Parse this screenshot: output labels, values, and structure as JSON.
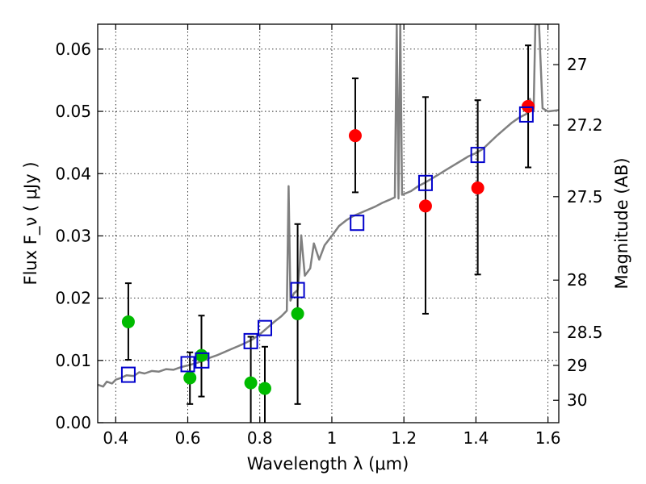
{
  "chart_data": {
    "type": "scatter",
    "title": "",
    "xlabel": "Wavelength  λ (μm)",
    "ylabel": "Flux  F_ν  ( μJy )",
    "y2label": "Magnitude (AB)",
    "xlim": [
      0.35,
      1.63
    ],
    "ylim": [
      0.0,
      0.064
    ],
    "grid": true,
    "x_ticks": [
      0.4,
      0.6,
      0.8,
      1.0,
      1.2,
      1.4,
      1.6
    ],
    "x_tick_labels": [
      "0.4",
      "0.6",
      "0.8",
      "1",
      "1.2",
      "1.4",
      "1.6"
    ],
    "y_ticks": [
      0.0,
      0.01,
      0.02,
      0.03,
      0.04,
      0.05,
      0.06
    ],
    "y_tick_labels": [
      "0.00",
      "0.01",
      "0.02",
      "0.03",
      "0.04",
      "0.05",
      "0.06"
    ],
    "y2_ticks": [
      {
        "label": "27",
        "flux": 0.0575
      },
      {
        "label": "27.2",
        "flux": 0.0478
      },
      {
        "label": "27.5",
        "flux": 0.0363
      },
      {
        "label": "28",
        "flux": 0.0229
      },
      {
        "label": "28.5",
        "flux": 0.0145
      },
      {
        "label": "29",
        "flux": 0.0092
      },
      {
        "label": "30",
        "flux": 0.0036
      }
    ],
    "series": [
      {
        "marker": "circle",
        "color": "#00bb00",
        "points": [
          {
            "x": 0.435,
            "y": 0.0162,
            "ylo": 0.0101,
            "yhi": 0.0224
          },
          {
            "x": 0.606,
            "y": 0.0072,
            "ylo": 0.003,
            "yhi": 0.0113
          },
          {
            "x": 0.638,
            "y": 0.0108,
            "ylo": 0.0042,
            "yhi": 0.0172
          },
          {
            "x": 0.775,
            "y": 0.0064,
            "ylo": 0.0,
            "yhi": 0.0138
          },
          {
            "x": 0.814,
            "y": 0.0055,
            "ylo": 0.0,
            "yhi": 0.0122
          },
          {
            "x": 0.905,
            "y": 0.0175,
            "ylo": 0.003,
            "yhi": 0.0319
          }
        ]
      },
      {
        "marker": "circle",
        "color": "#ff0000",
        "points": [
          {
            "x": 1.065,
            "y": 0.0461,
            "ylo": 0.037,
            "yhi": 0.0553
          },
          {
            "x": 1.26,
            "y": 0.0348,
            "ylo": 0.0175,
            "yhi": 0.0523
          },
          {
            "x": 1.405,
            "y": 0.0377,
            "ylo": 0.0238,
            "yhi": 0.0518
          },
          {
            "x": 1.545,
            "y": 0.0508,
            "ylo": 0.041,
            "yhi": 0.0606
          }
        ]
      },
      {
        "marker": "open-square",
        "color": "#0000cc",
        "points": [
          {
            "x": 0.435,
            "y": 0.0077
          },
          {
            "x": 0.6,
            "y": 0.0094
          },
          {
            "x": 0.64,
            "y": 0.01
          },
          {
            "x": 0.775,
            "y": 0.0131
          },
          {
            "x": 0.814,
            "y": 0.0152
          },
          {
            "x": 0.905,
            "y": 0.0213
          },
          {
            "x": 1.07,
            "y": 0.0321
          },
          {
            "x": 1.26,
            "y": 0.0385
          },
          {
            "x": 1.405,
            "y": 0.043
          },
          {
            "x": 1.54,
            "y": 0.0495
          }
        ]
      },
      {
        "marker": "line",
        "color": "#808080",
        "points": [
          {
            "x": 0.35,
            "y": 0.0061
          },
          {
            "x": 0.365,
            "y": 0.0058
          },
          {
            "x": 0.375,
            "y": 0.0066
          },
          {
            "x": 0.39,
            "y": 0.0063
          },
          {
            "x": 0.4,
            "y": 0.0069
          },
          {
            "x": 0.415,
            "y": 0.0072
          },
          {
            "x": 0.43,
            "y": 0.0076
          },
          {
            "x": 0.45,
            "y": 0.0075
          },
          {
            "x": 0.465,
            "y": 0.0081
          },
          {
            "x": 0.48,
            "y": 0.0079
          },
          {
            "x": 0.5,
            "y": 0.0083
          },
          {
            "x": 0.52,
            "y": 0.0082
          },
          {
            "x": 0.54,
            "y": 0.0086
          },
          {
            "x": 0.56,
            "y": 0.0085
          },
          {
            "x": 0.58,
            "y": 0.0089
          },
          {
            "x": 0.6,
            "y": 0.0092
          },
          {
            "x": 0.62,
            "y": 0.0095
          },
          {
            "x": 0.64,
            "y": 0.0099
          },
          {
            "x": 0.66,
            "y": 0.0104
          },
          {
            "x": 0.68,
            "y": 0.0108
          },
          {
            "x": 0.7,
            "y": 0.0113
          },
          {
            "x": 0.72,
            "y": 0.0118
          },
          {
            "x": 0.74,
            "y": 0.0123
          },
          {
            "x": 0.76,
            "y": 0.0128
          },
          {
            "x": 0.78,
            "y": 0.0134
          },
          {
            "x": 0.8,
            "y": 0.0142
          },
          {
            "x": 0.82,
            "y": 0.0152
          },
          {
            "x": 0.84,
            "y": 0.0162
          },
          {
            "x": 0.86,
            "y": 0.0171
          },
          {
            "x": 0.875,
            "y": 0.018
          },
          {
            "x": 0.88,
            "y": 0.038
          },
          {
            "x": 0.885,
            "y": 0.0196
          },
          {
            "x": 0.895,
            "y": 0.0208
          },
          {
            "x": 0.905,
            "y": 0.0213
          },
          {
            "x": 0.91,
            "y": 0.0245
          },
          {
            "x": 0.915,
            "y": 0.0301
          },
          {
            "x": 0.925,
            "y": 0.0236
          },
          {
            "x": 0.94,
            "y": 0.0248
          },
          {
            "x": 0.95,
            "y": 0.0288
          },
          {
            "x": 0.965,
            "y": 0.0262
          },
          {
            "x": 0.98,
            "y": 0.0285
          },
          {
            "x": 1.0,
            "y": 0.03
          },
          {
            "x": 1.02,
            "y": 0.0316
          },
          {
            "x": 1.04,
            "y": 0.0325
          },
          {
            "x": 1.06,
            "y": 0.0332
          },
          {
            "x": 1.08,
            "y": 0.0337
          },
          {
            "x": 1.1,
            "y": 0.0342
          },
          {
            "x": 1.12,
            "y": 0.0347
          },
          {
            "x": 1.14,
            "y": 0.0353
          },
          {
            "x": 1.16,
            "y": 0.0358
          },
          {
            "x": 1.175,
            "y": 0.0362
          },
          {
            "x": 1.18,
            "y": 0.064
          },
          {
            "x": 1.185,
            "y": 0.036
          },
          {
            "x": 1.19,
            "y": 0.064
          },
          {
            "x": 1.195,
            "y": 0.0366
          },
          {
            "x": 1.22,
            "y": 0.0372
          },
          {
            "x": 1.24,
            "y": 0.038
          },
          {
            "x": 1.26,
            "y": 0.0386
          },
          {
            "x": 1.28,
            "y": 0.0393
          },
          {
            "x": 1.3,
            "y": 0.04
          },
          {
            "x": 1.32,
            "y": 0.0407
          },
          {
            "x": 1.34,
            "y": 0.0414
          },
          {
            "x": 1.36,
            "y": 0.0421
          },
          {
            "x": 1.38,
            "y": 0.0428
          },
          {
            "x": 1.4,
            "y": 0.0433
          },
          {
            "x": 1.42,
            "y": 0.044
          },
          {
            "x": 1.44,
            "y": 0.0451
          },
          {
            "x": 1.46,
            "y": 0.0462
          },
          {
            "x": 1.48,
            "y": 0.0472
          },
          {
            "x": 1.5,
            "y": 0.0482
          },
          {
            "x": 1.52,
            "y": 0.049
          },
          {
            "x": 1.54,
            "y": 0.0496
          },
          {
            "x": 1.55,
            "y": 0.052
          },
          {
            "x": 1.56,
            "y": 0.05
          },
          {
            "x": 1.565,
            "y": 0.064
          },
          {
            "x": 1.575,
            "y": 0.064
          },
          {
            "x": 1.585,
            "y": 0.0505
          },
          {
            "x": 1.6,
            "y": 0.05
          },
          {
            "x": 1.63,
            "y": 0.0502
          }
        ]
      }
    ]
  }
}
